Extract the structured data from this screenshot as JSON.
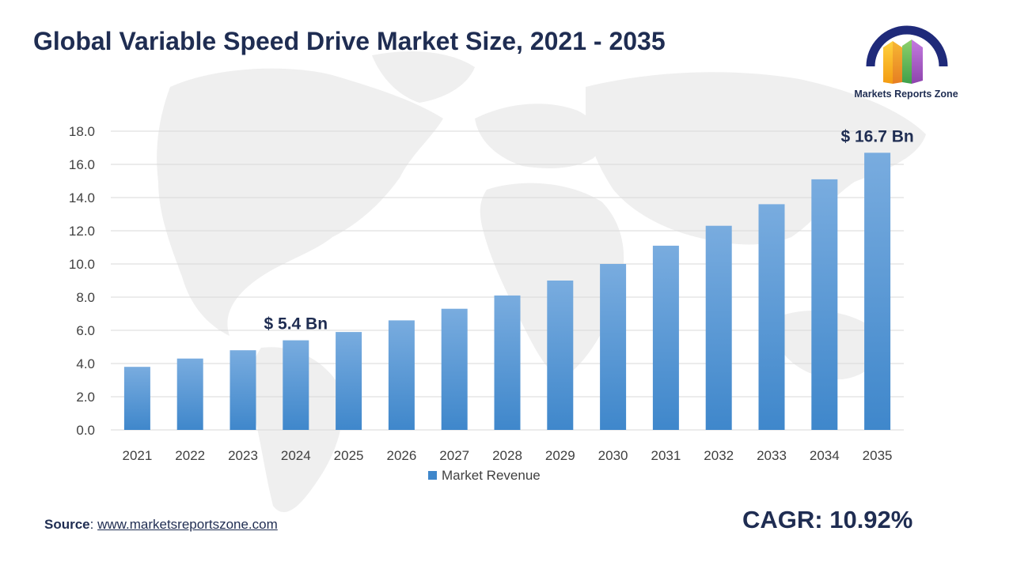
{
  "title": "Global Variable Speed Drive Market Size, 2021 - 2035",
  "logo": {
    "text": "Markets Reports Zone"
  },
  "source": {
    "label": "Source",
    "separator": ": ",
    "link": "www.marketsreportszone.com"
  },
  "cagr": "CAGR: 10.92%",
  "colors": {
    "bar_top": "#79acdf",
    "bar_bottom": "#3f87cb",
    "title": "#1f2d52",
    "grid": "#d9d9d9"
  },
  "chart_data": {
    "type": "bar",
    "title": "Global Variable Speed Drive Market Size, 2021 - 2035",
    "categories": [
      "2021",
      "2022",
      "2023",
      "2024",
      "2025",
      "2026",
      "2027",
      "2028",
      "2029",
      "2030",
      "2031",
      "2032",
      "2033",
      "2034",
      "2035"
    ],
    "series": [
      {
        "name": "Market Revenue",
        "values": [
          3.8,
          4.3,
          4.8,
          5.4,
          5.9,
          6.6,
          7.3,
          8.1,
          9.0,
          10.0,
          11.1,
          12.3,
          13.6,
          15.1,
          16.7
        ]
      }
    ],
    "ylim": [
      0,
      18
    ],
    "yticks": [
      "0.0",
      "2.0",
      "4.0",
      "6.0",
      "8.0",
      "10.0",
      "12.0",
      "14.0",
      "16.0",
      "18.0"
    ],
    "ytick_values": [
      0,
      2,
      4,
      6,
      8,
      10,
      12,
      14,
      16,
      18
    ],
    "grid": true,
    "legend": "bottom-center",
    "annotations": [
      {
        "category": "2024",
        "text": "$ 5.4 Bn"
      },
      {
        "category": "2035",
        "text": "$ 16.7 Bn"
      }
    ],
    "xlabel": "",
    "ylabel": ""
  }
}
